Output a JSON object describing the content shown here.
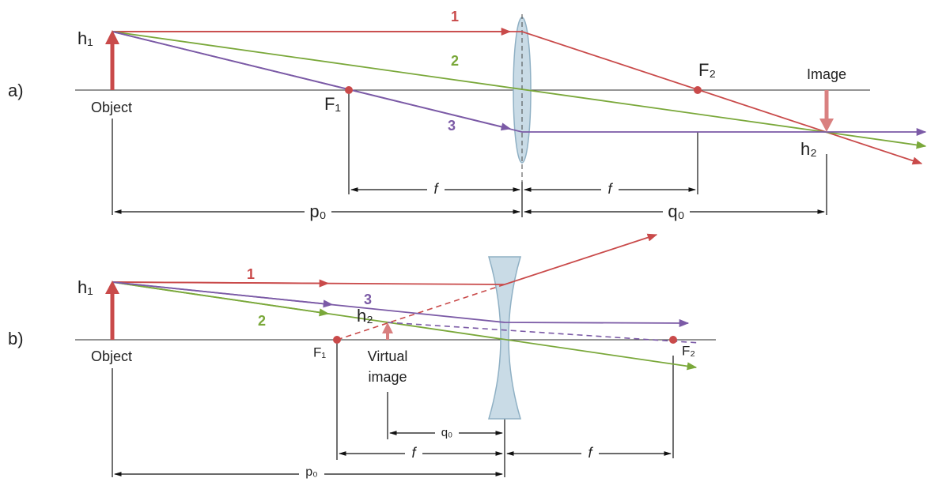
{
  "panels": [
    {
      "label": "a)",
      "rays": [
        "1",
        "2",
        "3"
      ],
      "object_height": "h₁",
      "image_height": "h₂",
      "object": "Object",
      "image": "Image",
      "focus_1": "F₁",
      "focus_2": "F₂",
      "dimensions": {
        "f_left": "f",
        "f_right": "f",
        "object_distance": "p₀",
        "image_distance": "q₀"
      }
    },
    {
      "label": "b)",
      "rays": [
        "1",
        "2",
        "3"
      ],
      "object_height": "h₁",
      "image_height": "h₂",
      "object": "Object",
      "image": [
        "Virtual",
        "image"
      ],
      "focus_1": "F₁",
      "focus_2": "F₂",
      "dimensions": {
        "image_distance": "q₀",
        "f_left": "f",
        "f_right": "f",
        "object_distance": "p₀"
      }
    }
  ]
}
